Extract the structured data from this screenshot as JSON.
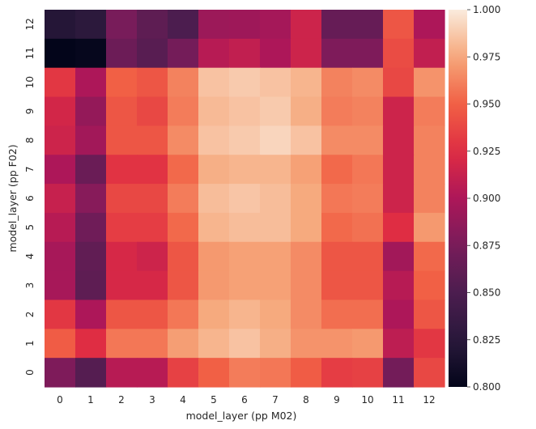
{
  "chart_data": {
    "type": "heatmap",
    "title": "",
    "xlabel": "model_layer (pp M02)",
    "ylabel": "model_layer (pp F02)",
    "x_categories": [
      "0",
      "1",
      "2",
      "3",
      "4",
      "5",
      "6",
      "7",
      "8",
      "9",
      "10",
      "11",
      "12"
    ],
    "y_categories": [
      "12",
      "11",
      "10",
      "9",
      "8",
      "7",
      "6",
      "5",
      "4",
      "3",
      "2",
      "1",
      "0"
    ],
    "colormap": "rocket",
    "vmin": 0.8,
    "vmax": 1.0,
    "colorbar_ticks": [
      "0.800",
      "0.825",
      "0.850",
      "0.875",
      "0.900",
      "0.925",
      "0.950",
      "0.975",
      "1.000"
    ],
    "values": [
      [
        0.822,
        0.827,
        0.875,
        0.86,
        0.85,
        0.892,
        0.893,
        0.896,
        0.915,
        0.865,
        0.865,
        0.945,
        0.9
      ],
      [
        0.8,
        0.802,
        0.868,
        0.857,
        0.873,
        0.905,
        0.91,
        0.9,
        0.915,
        0.878,
        0.878,
        0.94,
        0.91
      ],
      [
        0.93,
        0.9,
        0.95,
        0.945,
        0.962,
        0.985,
        0.988,
        0.985,
        0.98,
        0.962,
        0.965,
        0.938,
        0.968
      ],
      [
        0.918,
        0.888,
        0.945,
        0.938,
        0.96,
        0.982,
        0.985,
        0.988,
        0.978,
        0.96,
        0.962,
        0.915,
        0.96
      ],
      [
        0.915,
        0.895,
        0.945,
        0.945,
        0.965,
        0.985,
        0.988,
        0.992,
        0.985,
        0.965,
        0.965,
        0.915,
        0.962
      ],
      [
        0.9,
        0.867,
        0.928,
        0.928,
        0.953,
        0.978,
        0.98,
        0.98,
        0.973,
        0.953,
        0.958,
        0.915,
        0.962
      ],
      [
        0.912,
        0.882,
        0.938,
        0.938,
        0.96,
        0.983,
        0.986,
        0.983,
        0.976,
        0.958,
        0.96,
        0.915,
        0.962
      ],
      [
        0.905,
        0.87,
        0.933,
        0.933,
        0.953,
        0.98,
        0.983,
        0.983,
        0.976,
        0.953,
        0.956,
        0.925,
        0.97
      ],
      [
        0.897,
        0.862,
        0.92,
        0.915,
        0.945,
        0.97,
        0.973,
        0.973,
        0.965,
        0.945,
        0.945,
        0.895,
        0.953
      ],
      [
        0.897,
        0.86,
        0.92,
        0.92,
        0.945,
        0.97,
        0.973,
        0.973,
        0.965,
        0.945,
        0.945,
        0.905,
        0.95
      ],
      [
        0.93,
        0.9,
        0.945,
        0.945,
        0.958,
        0.976,
        0.98,
        0.976,
        0.965,
        0.955,
        0.955,
        0.9,
        0.945
      ],
      [
        0.948,
        0.925,
        0.958,
        0.958,
        0.972,
        0.98,
        0.985,
        0.978,
        0.968,
        0.968,
        0.97,
        0.908,
        0.93
      ],
      [
        0.878,
        0.855,
        0.905,
        0.905,
        0.935,
        0.95,
        0.96,
        0.958,
        0.948,
        0.933,
        0.935,
        0.872,
        0.938
      ]
    ]
  }
}
